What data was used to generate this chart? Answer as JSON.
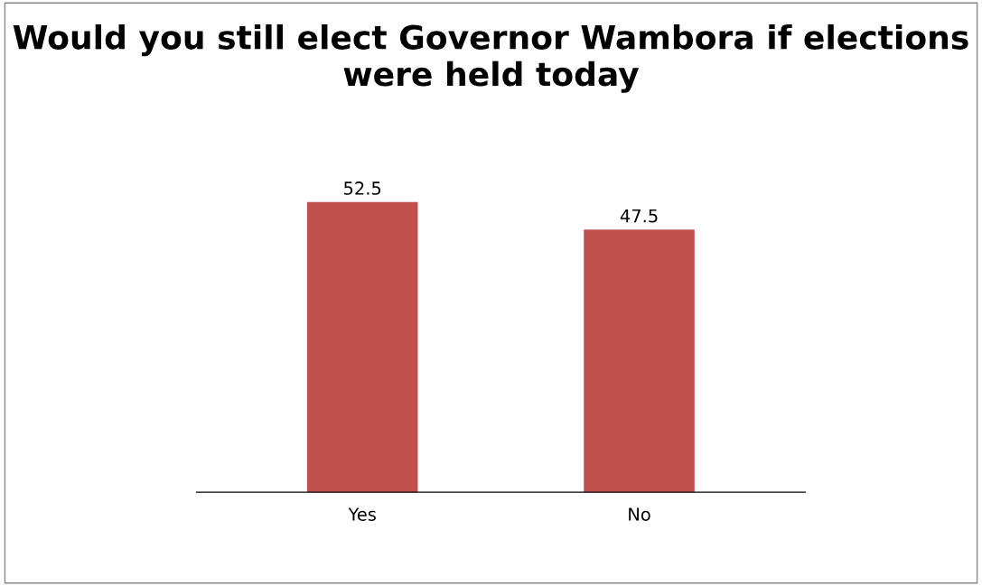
{
  "chart_data": {
    "type": "bar",
    "title": "Would you still elect Governor Wambora if elections were held today",
    "categories": [
      "Yes",
      "No"
    ],
    "values": [
      52.5,
      47.5
    ],
    "color": "#c0504d",
    "data_labels": true,
    "grid": false,
    "legend": false
  }
}
